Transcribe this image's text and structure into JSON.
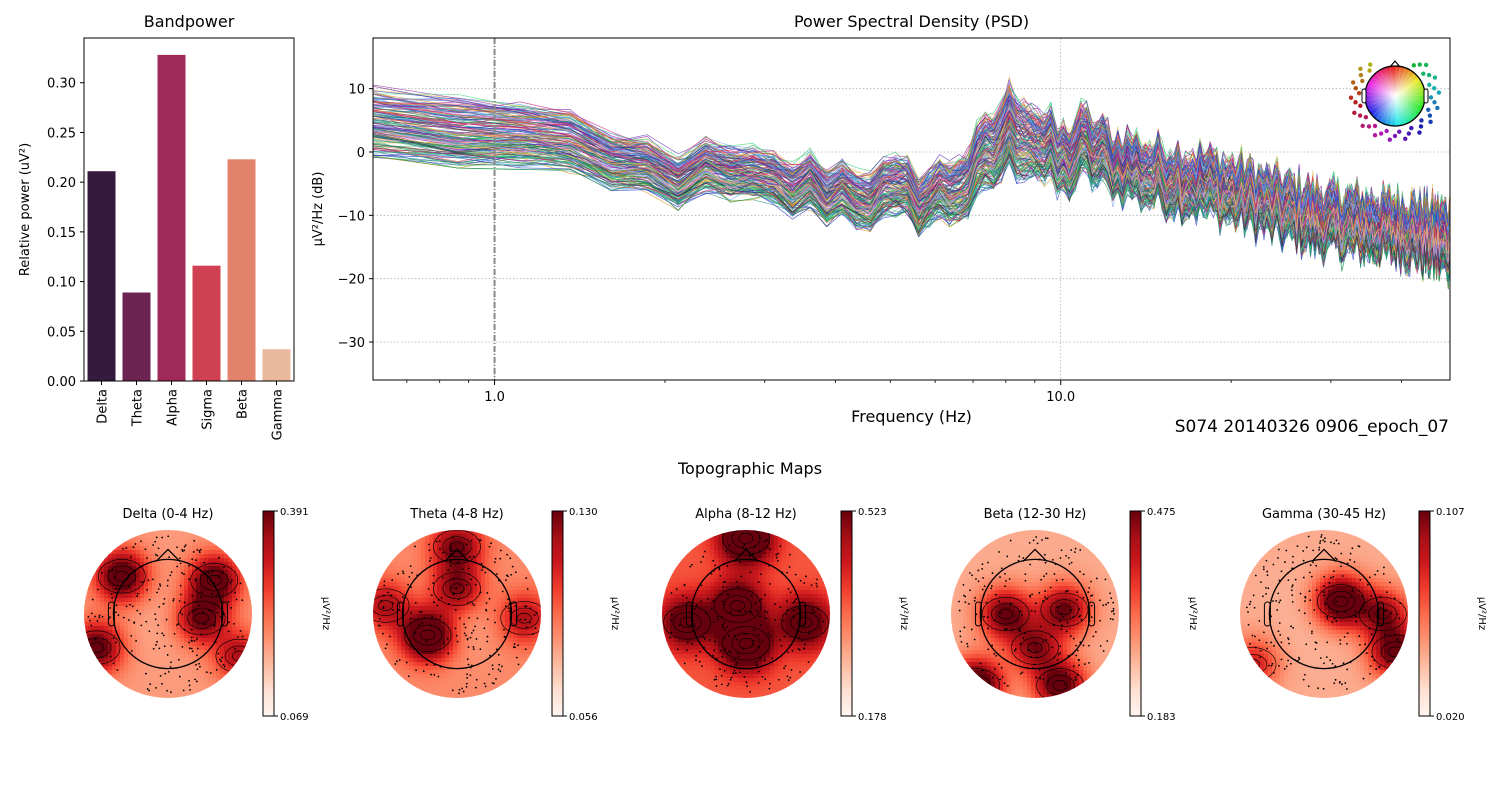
{
  "figure": {
    "subject_label": "S074 20140326 0906_epoch_07",
    "topo_section_title": "Topographic Maps"
  },
  "chart_data": [
    {
      "id": "bandpower",
      "type": "bar",
      "title": "Bandpower",
      "xlabel": "",
      "ylabel": "Relative power (uV²)",
      "categories": [
        "Delta",
        "Theta",
        "Alpha",
        "Sigma",
        "Beta",
        "Gamma"
      ],
      "values": [
        0.211,
        0.089,
        0.328,
        0.116,
        0.223,
        0.032
      ],
      "colors": [
        "#35193e",
        "#6b2451",
        "#9f2a5a",
        "#cf4152",
        "#e1826a",
        "#eab89c"
      ],
      "ylim": [
        0,
        0.345
      ],
      "yticks": [
        0.0,
        0.05,
        0.1,
        0.15,
        0.2,
        0.25,
        0.3
      ],
      "ytick_labels": [
        "0.00",
        "0.05",
        "0.10",
        "0.15",
        "0.20",
        "0.25",
        "0.30"
      ],
      "grid": false
    },
    {
      "id": "psd",
      "type": "line",
      "title": "Power Spectral Density (PSD)",
      "xlabel": "Frequency (Hz)",
      "ylabel": "µV²/Hz (dB)",
      "xscale": "log",
      "xlim": [
        0.61,
        48.7
      ],
      "ylim": [
        -36,
        18
      ],
      "xticks": [
        1.0,
        10.0
      ],
      "xtick_labels": [
        "1.0",
        "10.0"
      ],
      "yticks": [
        10,
        0,
        -10,
        -20,
        -30
      ],
      "ytick_labels": [
        "10",
        "0",
        "−10",
        "−20",
        "−30"
      ],
      "grid": true,
      "vline_x": 1.0,
      "n_channels_drawn": 160,
      "envelope": {
        "freqs": [
          0.61,
          0.75,
          1.0,
          1.25,
          1.5,
          2.0,
          2.5,
          3.0,
          4.0,
          5.0,
          6.0,
          7.0,
          8.0,
          8.5,
          9.0,
          10.0,
          11.0,
          12.0,
          14.0,
          16.0,
          20.0,
          25.0,
          30.0,
          40.0,
          48.7
        ],
        "mean_db": [
          4,
          4.5,
          3.5,
          0.5,
          -2,
          -3,
          -4,
          -5,
          -6,
          -7,
          -7,
          -4,
          3,
          4,
          2,
          -2,
          1,
          -1,
          -3,
          -4,
          -6,
          -9,
          -11,
          -12,
          -14
        ],
        "spread_db": [
          5,
          5,
          5,
          4,
          4,
          3.5,
          3.5,
          3.5,
          4,
          4,
          4,
          5,
          6,
          6,
          5,
          5,
          5,
          4.5,
          4.5,
          4.5,
          4.5,
          4.5,
          4.5,
          4.5,
          5
        ]
      },
      "sensor_legend": "channel-position color wheel",
      "channel_colors": [
        "#1f9e3a",
        "#2fbf6a",
        "#3ad37e",
        "#2a8f8c",
        "#1e6fb0",
        "#2b3cc0",
        "#5b2bb0",
        "#8a1fa0",
        "#c0208a",
        "#d8345a",
        "#e05a3a",
        "#d89a20",
        "#7aa0e8",
        "#e6a0d8",
        "#e8c060",
        "#2f2f3f",
        "#1a7a5a",
        "#4fa0f0"
      ]
    },
    {
      "id": "topomaps",
      "type": "heatmap",
      "title": "Topographic Maps",
      "colorbar_label": "µV²/Hz",
      "colormap": "Reds",
      "maps": [
        {
          "title": "Delta (0-4 Hz)",
          "vmin": 0.069,
          "vmax": 0.391,
          "vmin_label": "0.069",
          "vmax_label": "0.391",
          "hotspots": [
            [
              -0.55,
              -0.45,
              0.85
            ],
            [
              0.55,
              -0.4,
              0.8
            ],
            [
              -0.85,
              0.4,
              0.75
            ],
            [
              0.4,
              0.05,
              0.7
            ],
            [
              0.85,
              0.5,
              0.5
            ]
          ],
          "base": 0.35,
          "center_low": 0.05
        },
        {
          "title": "Theta (4-8 Hz)",
          "vmin": 0.056,
          "vmax": 0.13,
          "vmin_label": "0.056",
          "vmax_label": "0.130",
          "hotspots": [
            [
              -0.35,
              0.25,
              1.0
            ],
            [
              0.0,
              -0.8,
              0.6
            ],
            [
              0.0,
              -0.3,
              0.6
            ],
            [
              0.8,
              0.05,
              0.45
            ],
            [
              -0.85,
              -0.1,
              0.45
            ]
          ],
          "base": 0.4,
          "center_low": 0.1
        },
        {
          "title": "Alpha (8-12 Hz)",
          "vmin": 0.178,
          "vmax": 0.523,
          "vmin_label": "0.178",
          "vmax_label": "0.523",
          "hotspots": [
            [
              0.0,
              0.35,
              1.0
            ],
            [
              0.0,
              -0.9,
              0.95
            ],
            [
              -0.1,
              -0.1,
              0.75
            ],
            [
              -0.7,
              0.1,
              0.7
            ],
            [
              0.7,
              0.1,
              0.7
            ]
          ],
          "base": 0.55,
          "center_low": 0.0
        },
        {
          "title": "Beta (12-30 Hz)",
          "vmin": 0.183,
          "vmax": 0.475,
          "vmin_label": "0.183",
          "vmax_label": "0.475",
          "hotspots": [
            [
              -0.7,
              0.85,
              1.0
            ],
            [
              0.3,
              0.85,
              0.8
            ],
            [
              -0.35,
              0.0,
              0.75
            ],
            [
              0.35,
              -0.05,
              0.7
            ],
            [
              0.0,
              0.4,
              0.6
            ]
          ],
          "base": 0.3,
          "center_low": 0.0
        },
        {
          "title": "Gamma (30-45 Hz)",
          "vmin": 0.02,
          "vmax": 0.107,
          "vmin_label": "0.020",
          "vmax_label": "0.107",
          "hotspots": [
            [
              0.2,
              -0.15,
              1.0
            ],
            [
              0.85,
              0.45,
              0.75
            ],
            [
              -0.85,
              0.6,
              0.45
            ],
            [
              0.7,
              0.0,
              0.6
            ]
          ],
          "base": 0.3,
          "center_low": 0.05
        }
      ]
    }
  ]
}
